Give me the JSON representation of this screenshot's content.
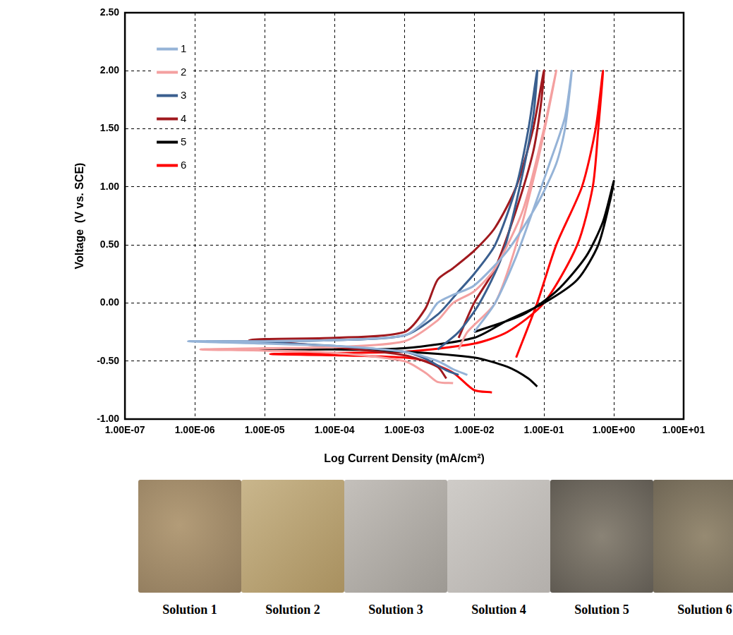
{
  "chart_data": {
    "type": "line",
    "x_label": "Log Current Density (mA/cm²)",
    "y_label": "Voltage  (V vs. SCE)",
    "log": "x",
    "grid": true,
    "legend": "upper left",
    "xlim": [
      1e-07,
      10
    ],
    "xticks": [
      {
        "value": 1e-07,
        "label": "1.00E-07"
      },
      {
        "value": 1e-06,
        "label": "1.00E-06"
      },
      {
        "value": 1e-05,
        "label": "1.00E-05"
      },
      {
        "value": 0.0001,
        "label": "1.00E-04"
      },
      {
        "value": 0.001,
        "label": "1.00E-03"
      },
      {
        "value": 0.01,
        "label": "1.00E-02"
      },
      {
        "value": 0.1,
        "label": "1.00E-01"
      },
      {
        "value": 1,
        "label": "1.00E+00"
      },
      {
        "value": 10,
        "label": "1.00E+01"
      }
    ],
    "ylim": [
      -1,
      2.5
    ],
    "yticks": [
      {
        "value": -1,
        "label": "-1.00"
      },
      {
        "value": -0.5,
        "label": "-0.50"
      },
      {
        "value": 0,
        "label": "0.00"
      },
      {
        "value": 0.5,
        "label": "0.50"
      },
      {
        "value": 1,
        "label": "1.00"
      },
      {
        "value": 1.5,
        "label": "1.50"
      },
      {
        "value": 2,
        "label": "2.00"
      },
      {
        "value": 2.5,
        "label": "2.50"
      }
    ],
    "series": [
      {
        "name": "1",
        "color": "#95b3d7",
        "x": [
          0.008,
          0.005,
          0.003,
          0.001,
          0.0001,
          1e-05,
          8e-07,
          1e-05,
          0.0001,
          0.001,
          0.002,
          0.003,
          0.005,
          0.01,
          0.03,
          0.08,
          0.15,
          0.2,
          0.25,
          0.2,
          0.12,
          0.07,
          0.04,
          0.02,
          0.01
        ],
        "values": [
          -0.62,
          -0.57,
          -0.5,
          -0.42,
          -0.37,
          -0.35,
          -0.33,
          -0.33,
          -0.32,
          -0.28,
          -0.15,
          0.0,
          0.07,
          0.15,
          0.45,
          0.85,
          1.2,
          1.5,
          2.0,
          1.6,
          1.2,
          0.8,
          0.4,
          0.0,
          -0.25
        ]
      },
      {
        "name": "2",
        "color": "#f4a0a0",
        "x": [
          0.005,
          0.003,
          0.002,
          0.001,
          0.0001,
          1e-05,
          1.2e-06,
          1e-05,
          0.0001,
          0.001,
          0.003,
          0.005,
          0.01,
          0.02,
          0.05,
          0.1,
          0.15,
          0.12,
          0.08,
          0.04,
          0.02,
          0.008,
          0.006
        ],
        "values": [
          -0.69,
          -0.68,
          -0.6,
          -0.5,
          -0.43,
          -0.41,
          -0.4,
          -0.39,
          -0.38,
          -0.33,
          -0.15,
          0.0,
          0.1,
          0.3,
          0.8,
          1.5,
          2.0,
          1.7,
          1.2,
          0.5,
          0.0,
          -0.25,
          -0.4
        ]
      },
      {
        "name": "3",
        "color": "#3a5f8f",
        "x": [
          0.006,
          0.004,
          0.002,
          0.001,
          0.0001,
          1e-05,
          1.5e-06,
          1e-05,
          0.0001,
          0.001,
          0.003,
          0.006,
          0.01,
          0.02,
          0.04,
          0.06,
          0.08,
          0.07,
          0.045,
          0.025,
          0.012,
          0.006,
          0.003
        ],
        "values": [
          -0.62,
          -0.58,
          -0.48,
          -0.42,
          -0.37,
          -0.34,
          -0.33,
          -0.33,
          -0.32,
          -0.28,
          -0.1,
          0.1,
          0.25,
          0.5,
          1.0,
          1.5,
          2.0,
          1.6,
          1.0,
          0.4,
          0.0,
          -0.25,
          -0.4
        ]
      },
      {
        "name": "4",
        "color": "#a0191e",
        "x": [
          0.004,
          0.003,
          0.001,
          0.0001,
          1e-05,
          6e-06,
          1e-05,
          0.0001,
          0.001,
          0.002,
          0.003,
          0.005,
          0.01,
          0.02,
          0.04,
          0.07,
          0.1,
          0.09,
          0.07,
          0.04,
          0.02,
          0.01,
          0.006
        ],
        "values": [
          -0.65,
          -0.55,
          -0.45,
          -0.38,
          -0.33,
          -0.32,
          -0.31,
          -0.3,
          -0.25,
          -0.05,
          0.2,
          0.3,
          0.45,
          0.65,
          1.0,
          1.5,
          2.0,
          1.7,
          1.3,
          0.8,
          0.3,
          0.0,
          -0.3
        ]
      },
      {
        "name": "5",
        "color": "#000000",
        "x": [
          0.08,
          0.06,
          0.03,
          0.01,
          0.001,
          0.0001,
          6e-06,
          0.0001,
          0.001,
          0.01,
          0.03,
          0.1,
          0.3,
          0.6,
          0.9,
          1.0,
          0.7,
          0.4,
          0.15,
          0.05,
          0.01
        ],
        "values": [
          -0.72,
          -0.65,
          -0.55,
          -0.47,
          -0.42,
          -0.4,
          -0.4,
          -0.4,
          -0.39,
          -0.3,
          -0.15,
          0.0,
          0.2,
          0.5,
          0.9,
          1.05,
          0.7,
          0.4,
          0.1,
          -0.1,
          -0.25
        ]
      },
      {
        "name": "6",
        "color": "#ff0000",
        "x": [
          0.018,
          0.01,
          0.005,
          0.002,
          0.001,
          0.0001,
          1.2e-05,
          0.0001,
          0.001,
          0.01,
          0.03,
          0.1,
          0.3,
          0.5,
          0.6,
          0.7,
          0.55,
          0.35,
          0.15,
          0.08,
          0.04
        ],
        "values": [
          -0.77,
          -0.75,
          -0.6,
          -0.5,
          -0.47,
          -0.45,
          -0.44,
          -0.43,
          -0.42,
          -0.35,
          -0.25,
          0.0,
          0.5,
          1.0,
          1.5,
          2.0,
          1.5,
          1.0,
          0.5,
          0.0,
          -0.47
        ]
      }
    ]
  },
  "images": [
    {
      "label": "Solution 1"
    },
    {
      "label": "Solution 2"
    },
    {
      "label": "Solution 3"
    },
    {
      "label": "Solution 4"
    },
    {
      "label": "Solution 5"
    },
    {
      "label": "Solution 6"
    }
  ]
}
